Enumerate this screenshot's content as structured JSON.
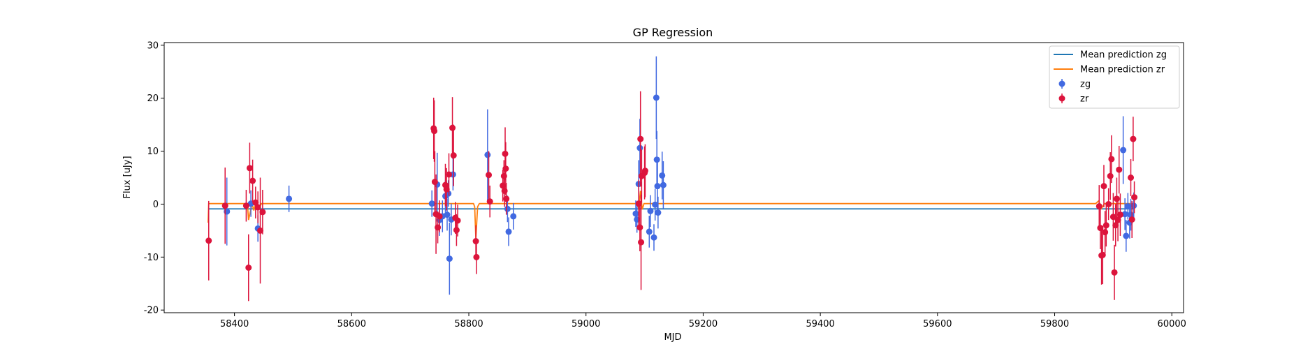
{
  "chart_data": {
    "type": "scatter",
    "title": "GP Regression",
    "xlabel": "MJD",
    "ylabel": "Flux [uJy]",
    "xlim": [
      58280,
      60020
    ],
    "ylim": [
      -20.5,
      30.5
    ],
    "xticks": [
      58400,
      58600,
      58800,
      59000,
      59200,
      59400,
      59600,
      59800,
      60000
    ],
    "yticks": [
      -20,
      -10,
      0,
      10,
      20,
      30
    ],
    "grid": false,
    "legend": {
      "placement": "top-right",
      "entries": [
        "Mean prediction zg",
        "Mean prediction zr",
        "zg",
        "zr"
      ]
    },
    "colors": {
      "zg_line": "#1f77b4",
      "zr_line": "#ff7f0e",
      "zg_points": "#4169e1",
      "zr_points": "#dc143c"
    },
    "mean_zg": {
      "name": "Mean prediction zg",
      "x": [
        58355,
        59935
      ],
      "y": [
        -0.9,
        -0.9
      ]
    },
    "mean_zr": {
      "name": "Mean prediction zr",
      "x": [
        58355,
        58356,
        58362,
        58422,
        58424,
        58430,
        58433,
        58436,
        58442,
        58446,
        58808,
        58810,
        58812,
        58815,
        58818,
        59088,
        59090,
        59093,
        59096,
        59099,
        59870,
        59875,
        59880,
        59885,
        59935
      ],
      "y": [
        -3.5,
        0.1,
        0.1,
        0.1,
        -3.0,
        0.1,
        -1.2,
        0.1,
        -0.8,
        0.1,
        0.1,
        -0.5,
        -6.5,
        -0.5,
        0.1,
        0.1,
        -1.0,
        2.5,
        -1.0,
        0.1,
        0.1,
        0.6,
        -0.8,
        0.1,
        0.1
      ]
    },
    "series": [
      {
        "name": "zg",
        "points": [
          {
            "x": 58387,
            "y": -1.4,
            "err": 6.4
          },
          {
            "x": 58428,
            "y": 0.1,
            "err": 2.5
          },
          {
            "x": 58440,
            "y": -4.6,
            "err": 2.5
          },
          {
            "x": 58493,
            "y": 1.0,
            "err": 2.5
          },
          {
            "x": 58737,
            "y": 0.1,
            "err": 2.5
          },
          {
            "x": 58746,
            "y": 3.7,
            "err": 6.0
          },
          {
            "x": 58750,
            "y": -3.0,
            "err": 3.0
          },
          {
            "x": 58755,
            "y": -2.3,
            "err": 3.0
          },
          {
            "x": 58760,
            "y": 1.5,
            "err": 3.0
          },
          {
            "x": 58763,
            "y": -2.0,
            "err": 3.0
          },
          {
            "x": 58765,
            "y": 2.0,
            "err": 2.5
          },
          {
            "x": 58767,
            "y": -10.3,
            "err": 6.8
          },
          {
            "x": 58770,
            "y": -2.9,
            "err": 3.0
          },
          {
            "x": 58773,
            "y": 5.6,
            "err": 3.0
          },
          {
            "x": 58832,
            "y": 9.3,
            "err": 8.6
          },
          {
            "x": 58866,
            "y": -0.9,
            "err": 2.5
          },
          {
            "x": 58868,
            "y": -5.2,
            "err": 2.7
          },
          {
            "x": 58876,
            "y": -2.3,
            "err": 2.5
          },
          {
            "x": 59085,
            "y": -1.8,
            "err": 2.5
          },
          {
            "x": 59087,
            "y": -2.9,
            "err": 2.5
          },
          {
            "x": 59090,
            "y": 3.8,
            "err": 4.5
          },
          {
            "x": 59092,
            "y": 10.6,
            "err": 5.5
          },
          {
            "x": 59108,
            "y": -5.2,
            "err": 3.0
          },
          {
            "x": 59110,
            "y": -1.3,
            "err": 3.0
          },
          {
            "x": 59116,
            "y": -6.3,
            "err": 2.5
          },
          {
            "x": 59118,
            "y": -0.1,
            "err": 3.0
          },
          {
            "x": 59120,
            "y": 20.1,
            "err": 7.8
          },
          {
            "x": 59121,
            "y": 8.4,
            "err": 5.4
          },
          {
            "x": 59122,
            "y": 3.4,
            "err": 5.0
          },
          {
            "x": 59123,
            "y": -1.6,
            "err": 3.0
          },
          {
            "x": 59130,
            "y": 5.4,
            "err": 4.5
          },
          {
            "x": 59132,
            "y": 3.6,
            "err": 4.5
          },
          {
            "x": 59917,
            "y": 10.2,
            "err": 6.4
          },
          {
            "x": 59920,
            "y": -1.9,
            "err": 3.0
          },
          {
            "x": 59922,
            "y": -6.0,
            "err": 3.0
          },
          {
            "x": 59925,
            "y": -0.4,
            "err": 2.5
          },
          {
            "x": 59928,
            "y": -3.5,
            "err": 3.0
          },
          {
            "x": 59930,
            "y": -2.0,
            "err": 3.0
          },
          {
            "x": 59935,
            "y": -0.3,
            "err": 2.5
          }
        ]
      },
      {
        "name": "zr",
        "points": [
          {
            "x": 58356,
            "y": -6.9,
            "err": 7.5
          },
          {
            "x": 58384,
            "y": -0.3,
            "err": 7.2
          },
          {
            "x": 58420,
            "y": -0.3,
            "err": 3.0
          },
          {
            "x": 58424,
            "y": -12.0,
            "err": 6.3
          },
          {
            "x": 58426,
            "y": 6.8,
            "err": 4.8
          },
          {
            "x": 58431,
            "y": 4.4,
            "err": 4.0
          },
          {
            "x": 58436,
            "y": 0.3,
            "err": 3.0
          },
          {
            "x": 58440,
            "y": -0.6,
            "err": 3.0
          },
          {
            "x": 58444,
            "y": -5.0,
            "err": 10.0
          },
          {
            "x": 58448,
            "y": -1.5,
            "err": 4.2
          },
          {
            "x": 58740,
            "y": 14.3,
            "err": 5.8
          },
          {
            "x": 58741,
            "y": 13.8,
            "err": 5.8
          },
          {
            "x": 58742,
            "y": 4.2,
            "err": 5.8
          },
          {
            "x": 58744,
            "y": -1.9,
            "err": 7.5
          },
          {
            "x": 58747,
            "y": -4.4,
            "err": 3.0
          },
          {
            "x": 58750,
            "y": -2.3,
            "err": 3.0
          },
          {
            "x": 58760,
            "y": 3.6,
            "err": 4.0
          },
          {
            "x": 58762,
            "y": 2.8,
            "err": 4.0
          },
          {
            "x": 58766,
            "y": 5.6,
            "err": 4.0
          },
          {
            "x": 58772,
            "y": 14.4,
            "err": 5.8
          },
          {
            "x": 58774,
            "y": 9.2,
            "err": 5.8
          },
          {
            "x": 58777,
            "y": -2.6,
            "err": 3.0
          },
          {
            "x": 58779,
            "y": -4.9,
            "err": 3.0
          },
          {
            "x": 58781,
            "y": -3.1,
            "err": 3.0
          },
          {
            "x": 58812,
            "y": -7.0,
            "err": 3.0
          },
          {
            "x": 58813,
            "y": -10.0,
            "err": 3.2
          },
          {
            "x": 58834,
            "y": 5.5,
            "err": 4.5
          },
          {
            "x": 58836,
            "y": 0.5,
            "err": 3.0
          },
          {
            "x": 58858,
            "y": 3.5,
            "err": 3.0
          },
          {
            "x": 58860,
            "y": 5.3,
            "err": 3.0
          },
          {
            "x": 58861,
            "y": 2.5,
            "err": 3.0
          },
          {
            "x": 58862,
            "y": 9.5,
            "err": 5.0
          },
          {
            "x": 58863,
            "y": 6.7,
            "err": 5.0
          },
          {
            "x": 58864,
            "y": 1.0,
            "err": 3.0
          },
          {
            "x": 59090,
            "y": 0.1,
            "err": 4.5
          },
          {
            "x": 59092,
            "y": -4.4,
            "err": 4.5
          },
          {
            "x": 59093,
            "y": 12.3,
            "err": 9.0
          },
          {
            "x": 59094,
            "y": -7.2,
            "err": 9.0
          },
          {
            "x": 59095,
            "y": 5.3,
            "err": 5.0
          },
          {
            "x": 59100,
            "y": 5.9,
            "err": 5.0
          },
          {
            "x": 59101,
            "y": 6.3,
            "err": 5.0
          },
          {
            "x": 59876,
            "y": -0.4,
            "err": 4.0
          },
          {
            "x": 59878,
            "y": -4.5,
            "err": 4.0
          },
          {
            "x": 59880,
            "y": -9.7,
            "err": 5.5
          },
          {
            "x": 59882,
            "y": -9.6,
            "err": 5.5
          },
          {
            "x": 59884,
            "y": 3.4,
            "err": 4.0
          },
          {
            "x": 59886,
            "y": -5.3,
            "err": 4.0
          },
          {
            "x": 59888,
            "y": -4.0,
            "err": 4.0
          },
          {
            "x": 59892,
            "y": 0.0,
            "err": 3.0
          },
          {
            "x": 59895,
            "y": 5.3,
            "err": 4.5
          },
          {
            "x": 59897,
            "y": 8.5,
            "err": 4.5
          },
          {
            "x": 59900,
            "y": -2.4,
            "err": 4.5
          },
          {
            "x": 59902,
            "y": -12.9,
            "err": 5.2
          },
          {
            "x": 59904,
            "y": -4.0,
            "err": 4.0
          },
          {
            "x": 59906,
            "y": 1.0,
            "err": 4.0
          },
          {
            "x": 59908,
            "y": -3.0,
            "err": 4.0
          },
          {
            "x": 59910,
            "y": 6.5,
            "err": 4.5
          },
          {
            "x": 59912,
            "y": -2.0,
            "err": 4.0
          },
          {
            "x": 59930,
            "y": 5.0,
            "err": 3.5
          },
          {
            "x": 59932,
            "y": -2.9,
            "err": 3.5
          },
          {
            "x": 59934,
            "y": 12.3,
            "err": 4.2
          },
          {
            "x": 59936,
            "y": 1.3,
            "err": 3.0
          }
        ]
      }
    ]
  }
}
